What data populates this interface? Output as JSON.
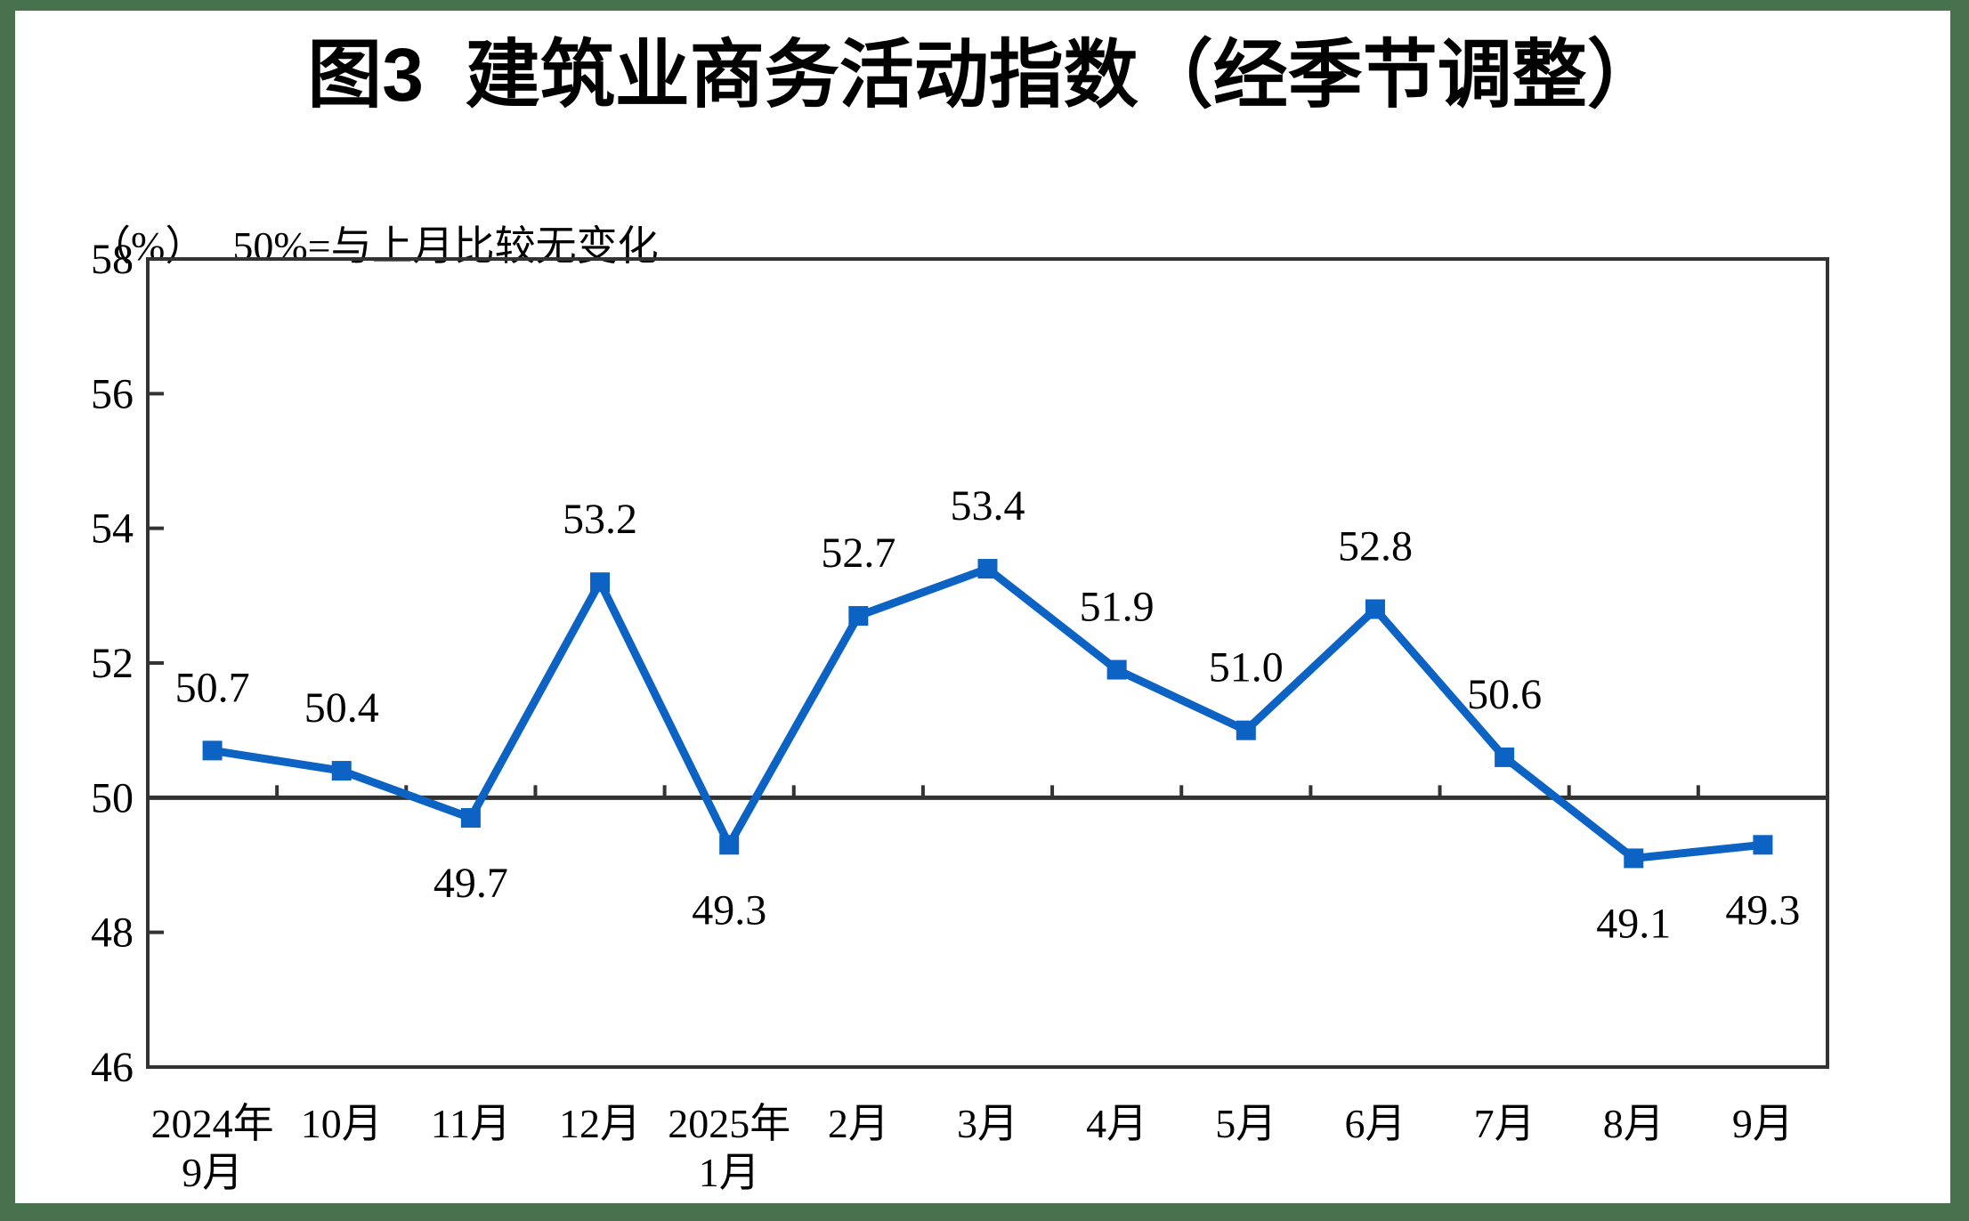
{
  "page": {
    "title": "图3  建筑业商务活动指数（经季节调整）",
    "unit_label": "（%）",
    "note": "50%=与上月比较无变化"
  },
  "chart_data": {
    "type": "line",
    "title": "图3 建筑业商务活动指数（经季节调整）",
    "subtitle_unit": "（%）",
    "subtitle_note": "50%=与上月比较无变化",
    "categories": [
      [
        "2024年",
        "9月"
      ],
      [
        "10月"
      ],
      [
        "11月"
      ],
      [
        "12月"
      ],
      [
        "2025年",
        "1月"
      ],
      [
        "2月"
      ],
      [
        "3月"
      ],
      [
        "4月"
      ],
      [
        "5月"
      ],
      [
        "6月"
      ],
      [
        "7月"
      ],
      [
        "8月"
      ],
      [
        "9月"
      ]
    ],
    "series": [
      {
        "name": "建筑业商务活动指数",
        "values": [
          50.7,
          50.4,
          49.7,
          53.2,
          49.3,
          52.7,
          53.4,
          51.9,
          51.0,
          52.8,
          50.6,
          49.1,
          49.3
        ]
      }
    ],
    "data_label_side": [
      "above",
      "above",
      "below",
      "above",
      "below",
      "above",
      "above",
      "above",
      "above",
      "above",
      "above",
      "below",
      "below"
    ],
    "ylim": [
      46,
      58
    ],
    "ytick_step": 2,
    "reference_line": 50,
    "grid": false,
    "legend": "none",
    "marker": "square",
    "colors": {
      "series": "#0d63c4",
      "axis": "#333333",
      "frame_border": "#48714E",
      "text": "#000000"
    }
  }
}
